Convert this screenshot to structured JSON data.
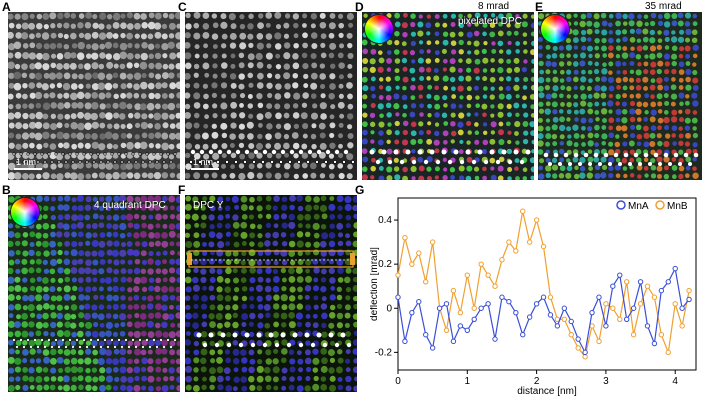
{
  "panels": {
    "A": {
      "label": "A",
      "scalebar": "1 nm"
    },
    "B": {
      "label": "B",
      "title": "4 quadrant DPC"
    },
    "C": {
      "label": "C",
      "scalebar": "1 nm"
    },
    "D": {
      "label": "D",
      "title_line1": "8 mrad",
      "title_line2": "pixelated DPC"
    },
    "E": {
      "label": "E",
      "title": "35 mrad"
    },
    "F": {
      "label": "F",
      "title": "DPC Y"
    },
    "G": {
      "label": "G"
    }
  },
  "colors": {
    "mnA": "#3a4fd8",
    "mnB": "#f0a030"
  },
  "chart_data": {
    "type": "line",
    "title": "",
    "xlabel": "distance [nm]",
    "ylabel": "deflection [mrad]",
    "xlim": [
      0,
      4.3
    ],
    "ylim": [
      -0.28,
      0.5
    ],
    "xticks": [
      "0",
      "1",
      "2",
      "3",
      "4"
    ],
    "xtick_values": [
      0,
      1,
      2,
      3,
      4
    ],
    "yticks": [
      "-0.2",
      "0",
      "0.2",
      "0.4"
    ],
    "ytick_values": [
      -0.2,
      0,
      0.2,
      0.4
    ],
    "legend_position": "top-right",
    "series": [
      {
        "name": "MnA",
        "x": [
          0.0,
          0.1,
          0.2,
          0.3,
          0.4,
          0.5,
          0.6,
          0.7,
          0.8,
          0.9,
          1.0,
          1.1,
          1.2,
          1.3,
          1.4,
          1.5,
          1.6,
          1.7,
          1.8,
          1.9,
          2.0,
          2.1,
          2.2,
          2.3,
          2.4,
          2.5,
          2.6,
          2.7,
          2.8,
          2.9,
          3.0,
          3.1,
          3.2,
          3.3,
          3.4,
          3.5,
          3.6,
          3.7,
          3.8,
          3.9,
          4.0,
          4.1,
          4.2
        ],
        "y": [
          0.05,
          -0.15,
          -0.02,
          0.03,
          -0.12,
          -0.18,
          0.0,
          0.02,
          -0.15,
          -0.08,
          -0.1,
          -0.05,
          0.0,
          0.02,
          -0.14,
          0.05,
          0.03,
          -0.02,
          -0.12,
          -0.04,
          0.02,
          0.05,
          -0.03,
          -0.08,
          0.0,
          -0.06,
          -0.14,
          -0.2,
          -0.02,
          0.05,
          -0.08,
          0.1,
          0.15,
          -0.05,
          0.0,
          0.12,
          -0.08,
          -0.16,
          0.08,
          0.12,
          0.18,
          0.0,
          0.04
        ]
      },
      {
        "name": "MnB",
        "x": [
          0.0,
          0.1,
          0.2,
          0.3,
          0.4,
          0.5,
          0.6,
          0.7,
          0.8,
          0.9,
          1.0,
          1.1,
          1.2,
          1.3,
          1.4,
          1.5,
          1.6,
          1.7,
          1.8,
          1.9,
          2.0,
          2.1,
          2.2,
          2.3,
          2.4,
          2.5,
          2.6,
          2.7,
          2.8,
          2.9,
          3.0,
          3.1,
          3.2,
          3.3,
          3.4,
          3.5,
          3.6,
          3.7,
          3.8,
          3.9,
          4.0,
          4.1,
          4.2
        ],
        "y": [
          0.15,
          0.32,
          0.2,
          0.25,
          0.12,
          0.3,
          0.0,
          -0.1,
          0.08,
          -0.02,
          0.15,
          0.0,
          0.2,
          0.15,
          0.1,
          0.22,
          0.3,
          0.26,
          0.44,
          0.3,
          0.4,
          0.28,
          0.05,
          -0.05,
          -0.05,
          -0.12,
          -0.18,
          -0.22,
          -0.08,
          -0.15,
          0.02,
          0.0,
          -0.05,
          0.12,
          -0.12,
          0.02,
          0.1,
          0.05,
          -0.12,
          -0.2,
          0.02,
          -0.08,
          0.08
        ]
      }
    ]
  }
}
